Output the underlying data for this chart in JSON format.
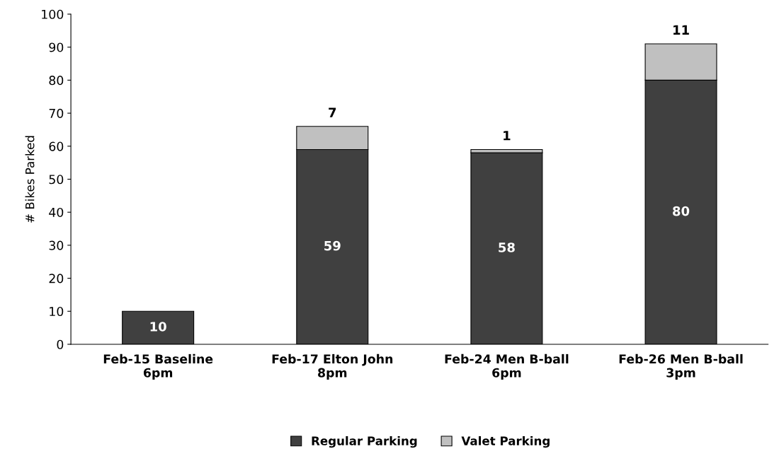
{
  "chart_data": {
    "type": "bar",
    "stacked": true,
    "ylabel": "# Bikes Parked",
    "categories": [
      "Feb-15 Baseline\n6pm",
      "Feb-17 Elton John\n8pm",
      "Feb-24 Men B-ball\n6pm",
      "Feb-26 Men B-ball\n3pm"
    ],
    "series": [
      {
        "name": "Regular Parking",
        "color": "#404040",
        "values": [
          10,
          59,
          58,
          80
        ]
      },
      {
        "name": "Valet Parking",
        "color": "#c0c0c0",
        "values": [
          null,
          7,
          1,
          11
        ]
      }
    ],
    "ylim": [
      0,
      100
    ],
    "yticks": [
      0,
      10,
      20,
      30,
      40,
      50,
      60,
      70,
      80,
      90,
      100
    ],
    "grid": false,
    "legend": "bottom",
    "data_labels": true
  }
}
